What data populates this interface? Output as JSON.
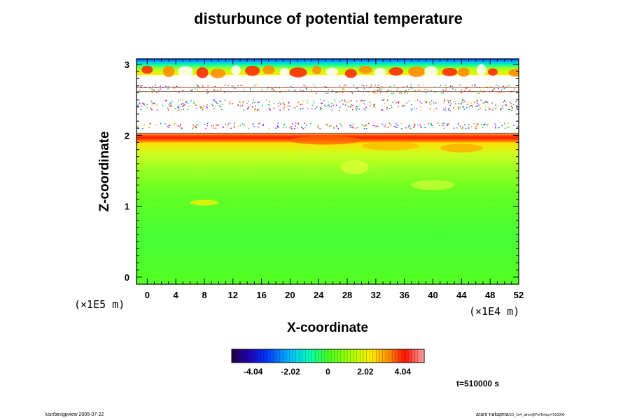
{
  "chart_data": {
    "type": "heatmap",
    "title": "disturbunce of potential temperature",
    "xlabel": "X-coordinate",
    "ylabel": "Z-coordinate",
    "x_scale_label": "(×1E4 m)",
    "y_scale_label": "(×1E5 m)",
    "xlim": [
      -1.5,
      52
    ],
    "ylim": [
      -0.1,
      3.08
    ],
    "xticks": [
      0,
      4,
      8,
      12,
      16,
      20,
      24,
      28,
      32,
      36,
      40,
      44,
      48,
      52
    ],
    "yticks": [
      0,
      1,
      2,
      3
    ],
    "colorbar": {
      "range": [
        -5.2,
        5.2
      ],
      "ticks": [
        -4.04,
        -2.02,
        0,
        2.02,
        4.04
      ],
      "tick_labels": [
        "-4.04",
        "-2.02",
        "0",
        "2.02",
        "4.04"
      ]
    },
    "field_description_values": {
      "lower_layer_z": [
        0,
        1.2
      ],
      "lower_layer_value": 0.3,
      "middle_layer_z": [
        1.2,
        1.9
      ],
      "middle_layer_value": 1.2,
      "inversion_z": [
        1.9,
        2.02
      ],
      "inversion_value": 4.0,
      "upper_layer_z": [
        2.02,
        2.85
      ],
      "upper_layer_value": "out of range (white)",
      "top_layer_z": [
        2.85,
        3.08
      ],
      "top_layer_value_range": [
        -3.5,
        4.5
      ]
    }
  },
  "annotations": {
    "time": "t=510000 s",
    "footer_left": "/usr/bin/gpview 2005-07-22",
    "footer_right_main": "arare-nakajima",
    "footer_right_small": "CO_1e4_atmo@PotTemp,t=510000"
  },
  "colors": {
    "background": "#ffffff",
    "field_low": "#55ff22",
    "field_mid": "#99ff22",
    "field_warm": "#ffee00",
    "field_hot": "#ff2200",
    "field_cold": "#0044ff"
  }
}
